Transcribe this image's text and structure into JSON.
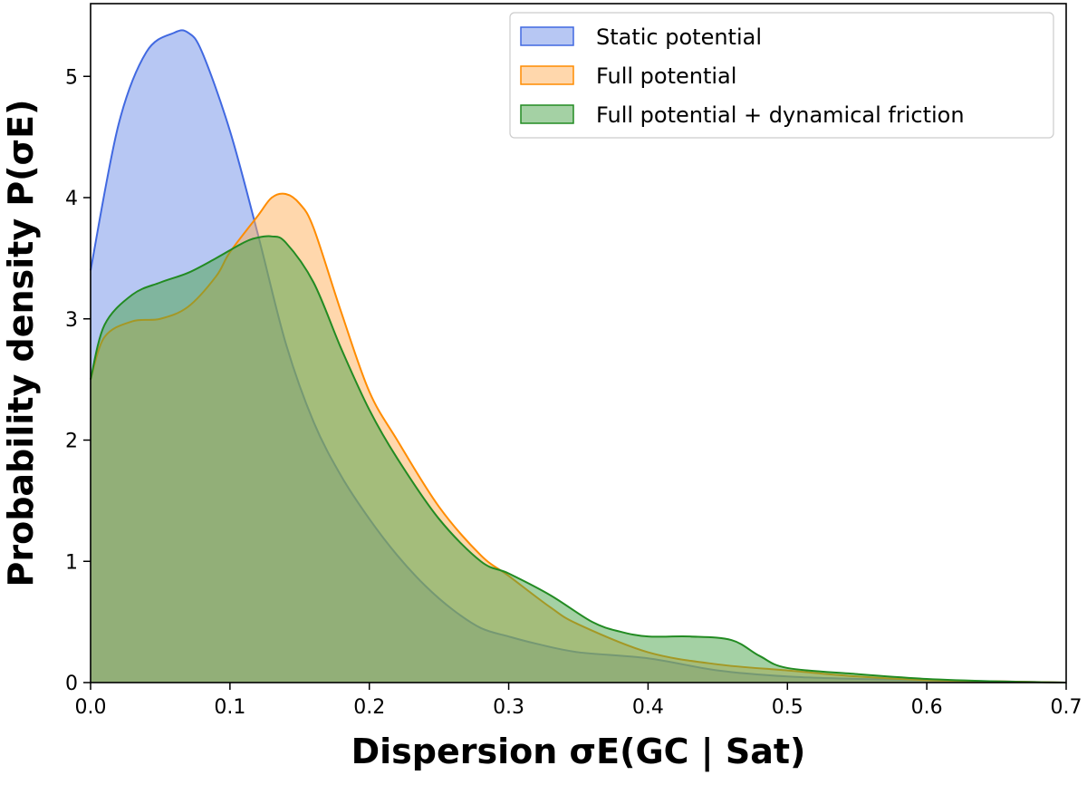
{
  "chart_data": {
    "type": "area",
    "xlabel": "Dispersion σE(GC | Sat)",
    "ylabel": "Probability density P(σE)",
    "xlim": [
      0.0,
      0.7
    ],
    "ylim": [
      0,
      5.6
    ],
    "xticks": [
      "0.0",
      "0.1",
      "0.2",
      "0.3",
      "0.4",
      "0.5",
      "0.6",
      "0.7"
    ],
    "yticks": [
      "0",
      "1",
      "2",
      "3",
      "4",
      "5"
    ],
    "grid": false,
    "legend_position": "top-right",
    "series": [
      {
        "name": "Static potential",
        "color": "#4169e1",
        "fill": "#6f8fe8",
        "x": [
          0.0,
          0.02,
          0.04,
          0.06,
          0.07,
          0.08,
          0.1,
          0.12,
          0.14,
          0.16,
          0.18,
          0.2,
          0.22,
          0.24,
          0.26,
          0.28,
          0.3,
          0.32,
          0.35,
          0.4,
          0.45,
          0.5,
          0.55,
          0.6,
          0.65,
          0.7
        ],
        "y": [
          3.4,
          4.6,
          5.2,
          5.36,
          5.36,
          5.2,
          4.55,
          3.7,
          2.8,
          2.15,
          1.7,
          1.35,
          1.05,
          0.8,
          0.6,
          0.45,
          0.38,
          0.32,
          0.25,
          0.2,
          0.1,
          0.05,
          0.03,
          0.02,
          0.01,
          0.0
        ]
      },
      {
        "name": "Full potential",
        "color": "#ff8c00",
        "fill": "#ffb05a",
        "x": [
          0.0,
          0.01,
          0.03,
          0.05,
          0.07,
          0.09,
          0.1,
          0.12,
          0.13,
          0.14,
          0.15,
          0.16,
          0.18,
          0.2,
          0.22,
          0.25,
          0.28,
          0.3,
          0.33,
          0.35,
          0.4,
          0.45,
          0.5,
          0.55,
          0.6,
          0.65,
          0.7
        ],
        "y": [
          2.5,
          2.85,
          2.98,
          3.0,
          3.1,
          3.35,
          3.55,
          3.85,
          4.0,
          4.03,
          3.95,
          3.75,
          3.05,
          2.4,
          2.0,
          1.45,
          1.05,
          0.88,
          0.62,
          0.48,
          0.25,
          0.15,
          0.1,
          0.05,
          0.02,
          0.01,
          0.0
        ]
      },
      {
        "name": "Full potential + dynamical friction",
        "color": "#228b22",
        "fill": "#4aa34a",
        "x": [
          0.0,
          0.01,
          0.03,
          0.05,
          0.07,
          0.09,
          0.11,
          0.12,
          0.13,
          0.14,
          0.16,
          0.18,
          0.2,
          0.22,
          0.25,
          0.28,
          0.3,
          0.33,
          0.36,
          0.38,
          0.4,
          0.43,
          0.46,
          0.48,
          0.5,
          0.55,
          0.6,
          0.65,
          0.7
        ],
        "y": [
          2.5,
          2.95,
          3.2,
          3.3,
          3.38,
          3.5,
          3.63,
          3.67,
          3.68,
          3.63,
          3.3,
          2.75,
          2.25,
          1.85,
          1.35,
          1.0,
          0.9,
          0.72,
          0.5,
          0.42,
          0.38,
          0.38,
          0.35,
          0.22,
          0.12,
          0.07,
          0.03,
          0.01,
          0.0
        ]
      }
    ]
  }
}
